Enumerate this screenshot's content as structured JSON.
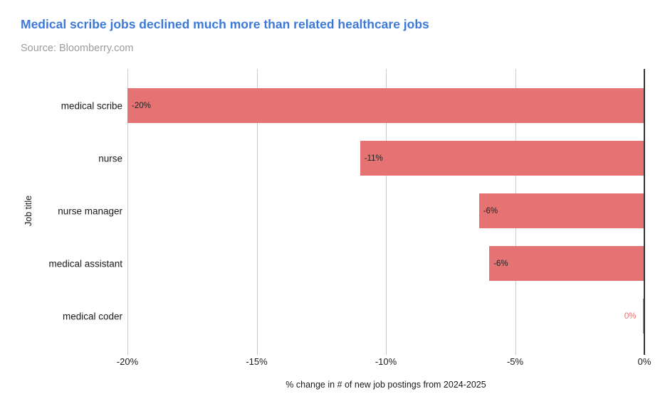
{
  "header": {
    "title": "Medical scribe jobs declined much more than related healthcare jobs",
    "source": "Source: Bloomberry.com"
  },
  "colors": {
    "title": "#3c78d8",
    "source": "#9c9c9c",
    "bar": "#e57373",
    "gridline": "#cccccc",
    "zero_axis": "#333333",
    "text": "#1a1a1a",
    "bar_value_label": "#212121"
  },
  "chart_data": {
    "type": "bar",
    "orientation": "horizontal",
    "title": "Medical scribe jobs declined much more than related healthcare jobs",
    "source": "Source: Bloomberry.com",
    "xlabel": "% change in # of new job postings from 2024-2025",
    "ylabel": "Job title",
    "categories": [
      "medical scribe",
      "nurse",
      "nurse manager",
      "medical assistant",
      "medical coder"
    ],
    "values": [
      -20,
      -11,
      -6.4,
      -6,
      0
    ],
    "value_labels": [
      "-20%",
      "-11%",
      "-6%",
      "-6%",
      "0%"
    ],
    "xlim": [
      -20,
      0
    ],
    "ticks": [
      {
        "label": "-20%",
        "value": -20
      },
      {
        "label": "-15%",
        "value": -15
      },
      {
        "label": "-10%",
        "value": -10
      },
      {
        "label": "-5%",
        "value": -5
      },
      {
        "label": "0%",
        "value": 0
      }
    ],
    "grid": true,
    "legend": "none",
    "bar_color": "#e57373"
  }
}
